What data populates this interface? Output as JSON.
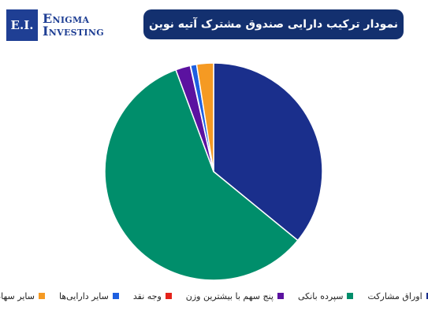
{
  "brand": {
    "logo_mark": "E.I.",
    "line1": "Enigma",
    "line2": "Investing"
  },
  "header": {
    "title": "نمودار ترکیب دارایی صندوق مشترک آتیه نوین"
  },
  "chart_data": {
    "type": "pie",
    "title": "نمودار ترکیب دارایی صندوق مشترک آتیه نوین",
    "start": "top",
    "direction": "clockwise",
    "series": [
      {
        "label": "اوراق مشارکت",
        "value": 35.9,
        "color": "#1a2f8c"
      },
      {
        "label": "سپرده بانکی",
        "value": 58.4,
        "color": "#008e6b"
      },
      {
        "label": "پنج سهم با بیشترین وزن",
        "value": 2.2,
        "color": "#5b12a0"
      },
      {
        "label": "وجه نقد",
        "value": 0.05,
        "color": "#e5231b"
      },
      {
        "label": "سایر دارایی‌ها",
        "value": 0.9,
        "color": "#1e5fe0"
      },
      {
        "label": "سایر سهام",
        "value": 2.5,
        "color": "#f59a23"
      }
    ]
  }
}
